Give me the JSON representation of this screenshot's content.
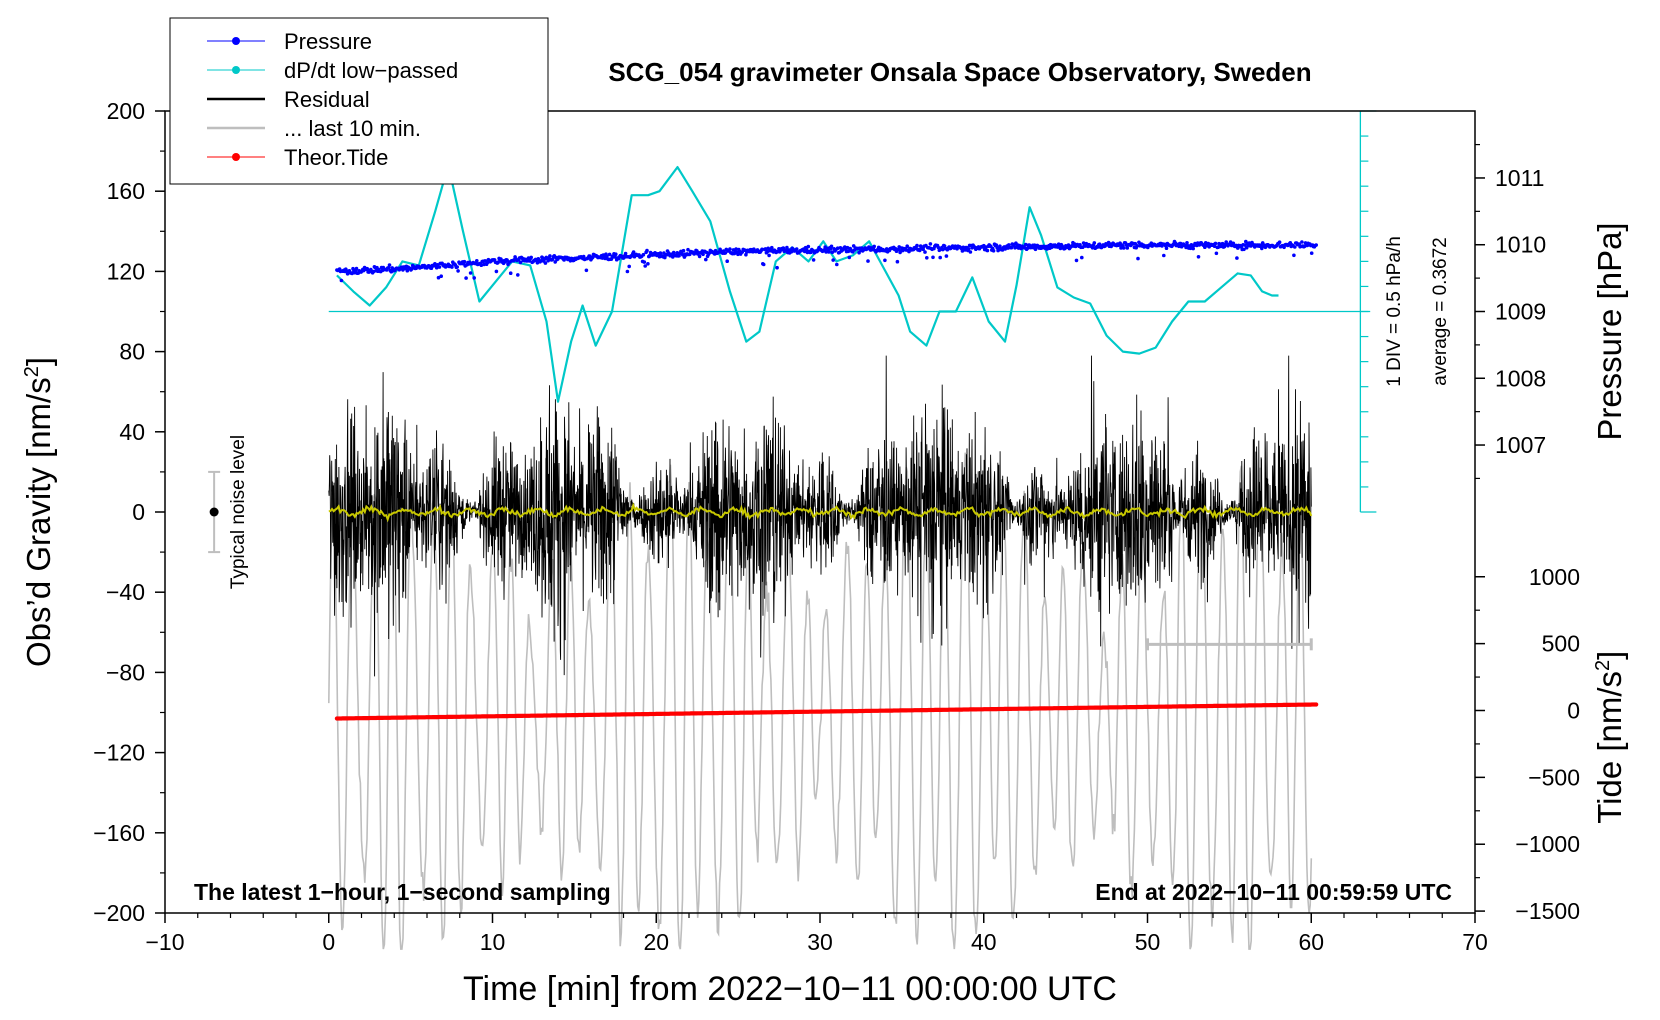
{
  "chart_data": {
    "type": "line",
    "title": "SCG_054 gravimeter Onsala Space Observatory, Sweden",
    "xlabel": "Time [min] from 2022−10−11 00:00:00 UTC",
    "xlim": [
      -10,
      70
    ],
    "xticks": [
      -10,
      0,
      10,
      20,
      30,
      40,
      50,
      60,
      70
    ],
    "xtick_labels": [
      "−10",
      "0",
      "10",
      "20",
      "30",
      "40",
      "50",
      "60",
      "70"
    ],
    "ylabel_left": "Obs’d Gravity [nm/s",
    "ylabel_left_sup": "2",
    "ylabel_left_close": "]",
    "ylim_left": [
      -200,
      200
    ],
    "yticks_left": [
      200,
      160,
      120,
      80,
      40,
      0,
      -40,
      -80,
      -120,
      -160,
      -200
    ],
    "ytick_labels_left": [
      "200",
      "160",
      "120",
      "80",
      "40",
      "0",
      "−40",
      "−80",
      "−120",
      "−160",
      "−200"
    ],
    "ylabel_pressure": "Pressure [hPa]",
    "pressure_ticks": [
      1011,
      1010,
      1009,
      1008,
      1007
    ],
    "pressure_tick_labels": [
      "1011",
      "1010",
      "1009",
      "1008",
      "1007"
    ],
    "pressure_scale": {
      "y_at_1009": 100,
      "nm_per_hPa": 33.3
    },
    "ylabel_tide": "Tide [nm/s",
    "ylabel_tide_sup": "2",
    "ylabel_tide_close": "]",
    "tide_ticks": [
      1000,
      500,
      0,
      -500,
      -1000,
      -1500
    ],
    "tide_tick_labels": [
      "1000",
      "500",
      "0",
      "−500",
      "−1000",
      "−1500"
    ],
    "tide_scale": {
      "y_at_0": -99,
      "nm_per_unit": 0.0667
    },
    "dpdt_annotation": "1 DIV = 0.5 hPa/h",
    "average_annotation": "average = 0.3672",
    "dpdt_axis": {
      "x": 63,
      "baseline_y": 100,
      "top_y": 200,
      "bottom_y": 0
    },
    "noise_label": "Typical noise level",
    "noise_bar": {
      "x": -7,
      "center": 0,
      "half_range": 20
    },
    "last10_bar": {
      "x_start": 50,
      "x_end": 60,
      "y": -66
    },
    "footer_left": "The latest 1−hour, 1−second sampling",
    "footer_right": "End at 2022−10−11 00:59:59 UTC",
    "legend": [
      {
        "label": "Pressure",
        "color": "#0000ff",
        "marker": true
      },
      {
        "label": "dP/dt low−passed",
        "color": "#00c8c8",
        "marker": true
      },
      {
        "label": "Residual",
        "color": "#000000",
        "marker": false
      },
      {
        "label": "... last 10 min.",
        "color": "#bebebe",
        "marker": false
      },
      {
        "label": "Theor.Tide",
        "color": "#ff0000",
        "marker": true
      }
    ],
    "series": [
      {
        "name": "Pressure",
        "color": "#0000ff",
        "unit": "hPa",
        "x": [
          0.5,
          5,
          10,
          15,
          20,
          25,
          30,
          35,
          40,
          45,
          50,
          55,
          60.3
        ],
        "y": [
          1009.6,
          1009.65,
          1009.75,
          1009.8,
          1009.85,
          1009.9,
          1009.92,
          1009.94,
          1009.96,
          1009.98,
          1010.0,
          1009.99,
          1010.0
        ]
      },
      {
        "name": "dP/dt low−passed",
        "color": "#00c8c8",
        "unit": "nm/s^2 (plot scale)",
        "x": [
          0.5,
          1.5,
          2.5,
          3.5,
          4.5,
          5.5,
          6.5,
          7.3,
          8.2,
          9.2,
          10.2,
          11.2,
          12.3,
          13.3,
          14,
          14.8,
          15.5,
          16.3,
          17.3,
          18.5,
          19.5,
          20.2,
          21.3,
          22.2,
          23.3,
          24.5,
          25.5,
          26.3,
          27.3,
          28.3,
          29.3,
          30.2,
          31,
          32,
          33,
          34,
          34.8,
          35.5,
          36.5,
          37.3,
          38.3,
          39.3,
          40.3,
          41.3,
          42,
          42.8,
          43.5,
          44.5,
          45.5,
          46.5,
          47.5,
          48.5,
          49.5,
          50.5,
          51.5,
          52.5,
          53.5,
          54.5,
          55.5,
          56.3,
          57,
          57.6,
          58
        ],
        "y": [
          118,
          110,
          103,
          112,
          125,
          123,
          150,
          173,
          140,
          105,
          115,
          125,
          123,
          95,
          55,
          85,
          103,
          83,
          100,
          158,
          158,
          160,
          172,
          160,
          145,
          110,
          85,
          90,
          125,
          132,
          125,
          135,
          125,
          128,
          135,
          120,
          108,
          90,
          83,
          100,
          100,
          117,
          95,
          85,
          113,
          152,
          138,
          112,
          107,
          104,
          88,
          80,
          79,
          82,
          95,
          105,
          105,
          112,
          119,
          118,
          110,
          108,
          108
        ]
      },
      {
        "name": "Residual",
        "color": "#000000",
        "unit": "nm/s^2",
        "x_start": 0,
        "x_end": 60,
        "amplitude_range": [
          -82,
          78
        ]
      },
      {
        "name": "Residual low-passed",
        "color": "#c8c800",
        "unit": "nm/s^2",
        "x_start": 0,
        "x_end": 60,
        "mean": 0
      },
      {
        "name": "... last 10 min.",
        "color": "#bebebe",
        "unit": "nm/s^2",
        "x_start": 0,
        "x_end": 60,
        "center": -100,
        "amplitude_range": [
          -218,
          60
        ]
      },
      {
        "name": "Theor.Tide",
        "color": "#ff0000",
        "unit": "nm/s^2 (plot scale)",
        "x": [
          0.5,
          60.3
        ],
        "y": [
          -103,
          -96
        ]
      }
    ]
  }
}
